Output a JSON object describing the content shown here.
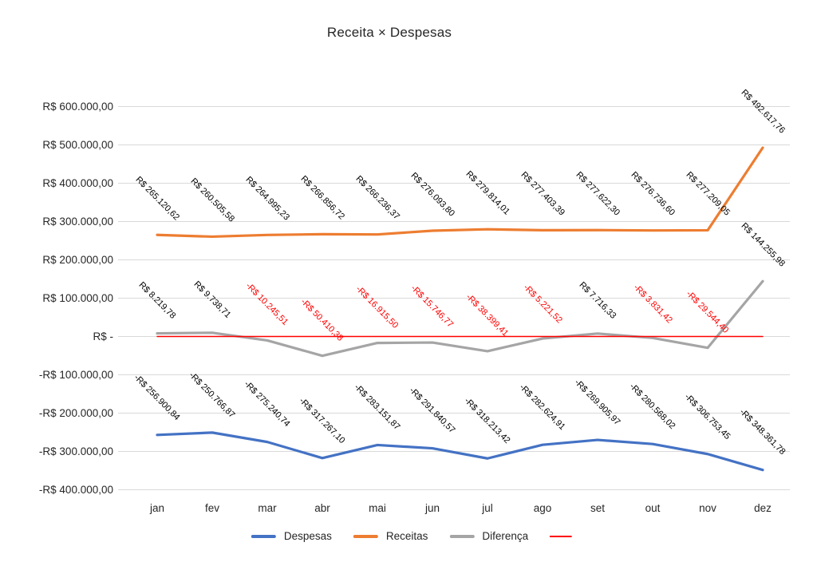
{
  "title": "Receita × Despesas",
  "colors": {
    "despesas": "#4472C4",
    "receitas": "#ED7D31",
    "diferenca": "#A5A5A5",
    "zero_line": "#FF0000",
    "negative_label": "#FF0000",
    "grid": "#D9D9D9",
    "axis_text": "#262626",
    "label_text": "#000000"
  },
  "chart_data": {
    "type": "line",
    "title": "Receita × Despesas",
    "grid": true,
    "legend_position": "bottom",
    "ylim": [
      -400000,
      600000
    ],
    "categories": [
      "jan",
      "fev",
      "mar",
      "abr",
      "mai",
      "jun",
      "jul",
      "ago",
      "set",
      "out",
      "nov",
      "dez"
    ],
    "y_ticks": [
      {
        "label": "R$ 600.000,00",
        "value": 600000
      },
      {
        "label": "R$ 500.000,00",
        "value": 500000
      },
      {
        "label": "R$ 400.000,00",
        "value": 400000
      },
      {
        "label": "R$ 300.000,00",
        "value": 300000
      },
      {
        "label": "R$ 200.000,00",
        "value": 200000
      },
      {
        "label": "R$ 100.000,00",
        "value": 100000
      },
      {
        "label": "R$ -",
        "value": 0
      },
      {
        "label": "-R$ 100.000,00",
        "value": -100000
      },
      {
        "label": "-R$ 200.000,00",
        "value": -200000
      },
      {
        "label": "-R$ 300.000,00",
        "value": -300000
      },
      {
        "label": "-R$ 400.000,00",
        "value": -400000
      }
    ],
    "series": [
      {
        "name": "Despesas",
        "color": "#4472C4",
        "stroke_width": 3.2,
        "values": [
          -256900.84,
          -250766.87,
          -275240.74,
          -317267.1,
          -283151.87,
          -291840.57,
          -318213.42,
          -282624.91,
          -269905.97,
          -280568.02,
          -306753.45,
          -348361.78
        ],
        "labels": [
          "-R$ 256.900,84",
          "-R$ 250.766,87",
          "-R$ 275.240,74",
          "-R$ 317.267,10",
          "-R$ 283.151,87",
          "-R$ 291.840,57",
          "-R$ 318.213,42",
          "-R$ 282.624,91",
          "-R$ 269.905,97",
          "-R$ 280.568,02",
          "-R$ 306.753,45",
          "-R$ 348.361,78"
        ]
      },
      {
        "name": "Receitas",
        "color": "#ED7D31",
        "stroke_width": 3.2,
        "values": [
          265120.62,
          260505.58,
          264995.23,
          266856.72,
          266236.37,
          276093.8,
          279814.01,
          277403.39,
          277622.3,
          276736.6,
          277209.05,
          492617.76
        ],
        "labels": [
          "R$ 265.120,62",
          "R$ 260.505,58",
          "R$ 264.995,23",
          "R$ 266.856,72",
          "R$ 266.236,37",
          "R$ 276.093,80",
          "R$ 279.814,01",
          "R$ 277.403,39",
          "R$ 277.622,30",
          "R$ 276.736,60",
          "R$ 277.209,05",
          "R$ 492.617,76"
        ]
      },
      {
        "name": "Diferença",
        "color": "#A5A5A5",
        "stroke_width": 3.2,
        "negative_label_color": "#FF0000",
        "values": [
          8219.78,
          9738.71,
          -10245.51,
          -50410.38,
          -16915.5,
          -15746.77,
          -38399.41,
          -5221.52,
          7716.33,
          -3831.42,
          -29544.4,
          144255.98
        ],
        "labels": [
          "R$ 8.219,78",
          "R$ 9.738,71",
          "-R$ 10.245,51",
          "-R$ 50.410,38",
          "-R$ 16.915,50",
          "-R$ 15.746,77",
          "-R$ 38.399,41",
          "-R$ 5.221,52",
          "R$ 7.716,33",
          "-R$ 3.831,42",
          "-R$ 29.544,40",
          "R$ 144.255,98"
        ]
      },
      {
        "name": "",
        "color": "#FF0000",
        "stroke_width": 1.4,
        "values": [
          0,
          0,
          0,
          0,
          0,
          0,
          0,
          0,
          0,
          0,
          0,
          0
        ],
        "labels": []
      }
    ]
  }
}
